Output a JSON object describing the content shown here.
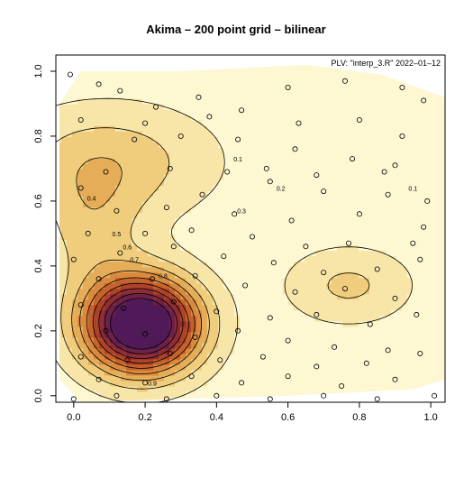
{
  "title": "Akima – 200 point grid – bilinear",
  "annotation": "PLV: \"interp_3.R\"  2022–01–12",
  "colors": {
    "ramp": [
      "#fdf7d2",
      "#f8e6a8",
      "#efcd7c",
      "#e5ad58",
      "#d98a3e",
      "#c6622c",
      "#ad4329",
      "#8e2d33",
      "#6c2148",
      "#4f1a57"
    ],
    "line": "#000000",
    "background": "#ffffff"
  },
  "chart_data": {
    "type": "heatmap",
    "title": "Akima – 200 point grid – bilinear",
    "xlabel": "",
    "ylabel": "",
    "xlim": [
      -0.05,
      1.04
    ],
    "ylim": [
      -0.02,
      1.05
    ],
    "x_ticks": [
      0.0,
      0.2,
      0.4,
      0.6,
      0.8,
      1.0
    ],
    "y_ticks": [
      0.0,
      0.2,
      0.4,
      0.6,
      0.8,
      1.0
    ],
    "x_tick_labels": [
      "0.0",
      "0.2",
      "0.4",
      "0.6",
      "0.8",
      "1.0"
    ],
    "y_tick_labels": [
      "0.0",
      "0.2",
      "0.4",
      "0.6",
      "0.8",
      "1.0"
    ],
    "contour_levels": [
      0.1,
      0.2,
      0.3,
      0.4,
      0.5,
      0.6,
      0.7,
      0.8,
      0.9
    ],
    "contour_labels": [
      {
        "x": 0.46,
        "y": 0.73,
        "label": "0.1"
      },
      {
        "x": 0.58,
        "y": 0.64,
        "label": "0.2"
      },
      {
        "x": 0.47,
        "y": 0.57,
        "label": "0.3"
      },
      {
        "x": 0.05,
        "y": 0.61,
        "label": "0.4"
      },
      {
        "x": 0.12,
        "y": 0.5,
        "label": "0.5"
      },
      {
        "x": 0.15,
        "y": 0.46,
        "label": "0.6"
      },
      {
        "x": 0.17,
        "y": 0.42,
        "label": "0.7"
      },
      {
        "x": 0.25,
        "y": 0.37,
        "label": "0.8"
      },
      {
        "x": 0.22,
        "y": 0.04,
        "label": "0.9"
      },
      {
        "x": 0.95,
        "y": 0.64,
        "label": "0.1"
      }
    ],
    "peaks": [
      {
        "x": 0.19,
        "y": 0.22,
        "z": 1.15,
        "sx": 0.11,
        "sy": 0.1
      },
      {
        "x": 0.77,
        "y": 0.34,
        "z": 0.18,
        "sx": 0.12,
        "sy": 0.08
      },
      {
        "x": 0.05,
        "y": 0.5,
        "z": 0.18,
        "sx": 0.1,
        "sy": 0.14
      },
      {
        "x": 0.1,
        "y": 0.72,
        "z": 0.22,
        "sx": 0.2,
        "sy": 0.12
      }
    ],
    "hull": [
      [
        -0.04,
        0.9
      ],
      [
        0.02,
        1.0
      ],
      [
        0.3,
        1.0
      ],
      [
        0.65,
        1.02
      ],
      [
        0.86,
        0.99
      ],
      [
        1.04,
        0.92
      ],
      [
        1.04,
        0.05
      ],
      [
        0.95,
        0.02
      ],
      [
        0.6,
        0.0
      ],
      [
        0.3,
        -0.01
      ],
      [
        0.02,
        -0.02
      ],
      [
        -0.04,
        0.05
      ]
    ],
    "points": [
      [
        -0.01,
        0.99
      ],
      [
        0.07,
        0.96
      ],
      [
        0.13,
        0.94
      ],
      [
        0.23,
        0.89
      ],
      [
        0.35,
        0.92
      ],
      [
        0.47,
        0.88
      ],
      [
        0.6,
        0.95
      ],
      [
        0.76,
        0.97
      ],
      [
        0.92,
        0.95
      ],
      [
        0.98,
        0.91
      ],
      [
        0.02,
        0.85
      ],
      [
        0.2,
        0.84
      ],
      [
        0.38,
        0.86
      ],
      [
        0.63,
        0.84
      ],
      [
        0.8,
        0.85
      ],
      [
        0.92,
        0.8
      ],
      [
        0.17,
        0.79
      ],
      [
        0.3,
        0.8
      ],
      [
        0.46,
        0.79
      ],
      [
        0.62,
        0.76
      ],
      [
        0.78,
        0.73
      ],
      [
        0.9,
        0.71
      ],
      [
        0.09,
        0.69
      ],
      [
        0.27,
        0.7
      ],
      [
        0.43,
        0.69
      ],
      [
        0.54,
        0.7
      ],
      [
        0.68,
        0.68
      ],
      [
        0.87,
        0.69
      ],
      [
        0.02,
        0.64
      ],
      [
        0.36,
        0.62
      ],
      [
        0.55,
        0.66
      ],
      [
        0.7,
        0.63
      ],
      [
        0.88,
        0.62
      ],
      [
        0.99,
        0.6
      ],
      [
        0.12,
        0.57
      ],
      [
        0.26,
        0.58
      ],
      [
        0.45,
        0.56
      ],
      [
        0.61,
        0.54
      ],
      [
        0.8,
        0.56
      ],
      [
        0.98,
        0.52
      ],
      [
        0.04,
        0.5
      ],
      [
        0.2,
        0.5
      ],
      [
        0.33,
        0.51
      ],
      [
        0.5,
        0.49
      ],
      [
        0.65,
        0.46
      ],
      [
        0.77,
        0.47
      ],
      [
        0.95,
        0.47
      ],
      [
        0.0,
        0.42
      ],
      [
        0.13,
        0.44
      ],
      [
        0.28,
        0.46
      ],
      [
        0.42,
        0.43
      ],
      [
        0.56,
        0.41
      ],
      [
        0.7,
        0.38
      ],
      [
        0.85,
        0.39
      ],
      [
        0.97,
        0.42
      ],
      [
        0.07,
        0.36
      ],
      [
        0.22,
        0.36
      ],
      [
        0.34,
        0.37
      ],
      [
        0.48,
        0.34
      ],
      [
        0.62,
        0.32
      ],
      [
        0.76,
        0.33
      ],
      [
        0.9,
        0.3
      ],
      [
        0.02,
        0.28
      ],
      [
        0.14,
        0.27
      ],
      [
        0.28,
        0.29
      ],
      [
        0.4,
        0.26
      ],
      [
        0.55,
        0.24
      ],
      [
        0.68,
        0.25
      ],
      [
        0.83,
        0.22
      ],
      [
        0.96,
        0.25
      ],
      [
        0.09,
        0.2
      ],
      [
        0.2,
        0.19
      ],
      [
        0.34,
        0.18
      ],
      [
        0.46,
        0.2
      ],
      [
        0.6,
        0.17
      ],
      [
        0.73,
        0.15
      ],
      [
        0.88,
        0.14
      ],
      [
        0.02,
        0.12
      ],
      [
        0.15,
        0.11
      ],
      [
        0.27,
        0.13
      ],
      [
        0.41,
        0.11
      ],
      [
        0.53,
        0.12
      ],
      [
        0.68,
        0.09
      ],
      [
        0.82,
        0.1
      ],
      [
        0.97,
        0.13
      ],
      [
        0.07,
        0.05
      ],
      [
        0.2,
        0.04
      ],
      [
        0.33,
        0.06
      ],
      [
        0.47,
        0.04
      ],
      [
        0.6,
        0.06
      ],
      [
        0.75,
        0.03
      ],
      [
        0.9,
        0.05
      ],
      [
        1.01,
        0.0
      ],
      [
        0.0,
        -0.01
      ],
      [
        0.12,
        0.0
      ],
      [
        0.26,
        -0.01
      ],
      [
        0.4,
        0.0
      ],
      [
        0.55,
        -0.01
      ],
      [
        0.7,
        0.0
      ],
      [
        0.85,
        -0.01
      ]
    ]
  }
}
